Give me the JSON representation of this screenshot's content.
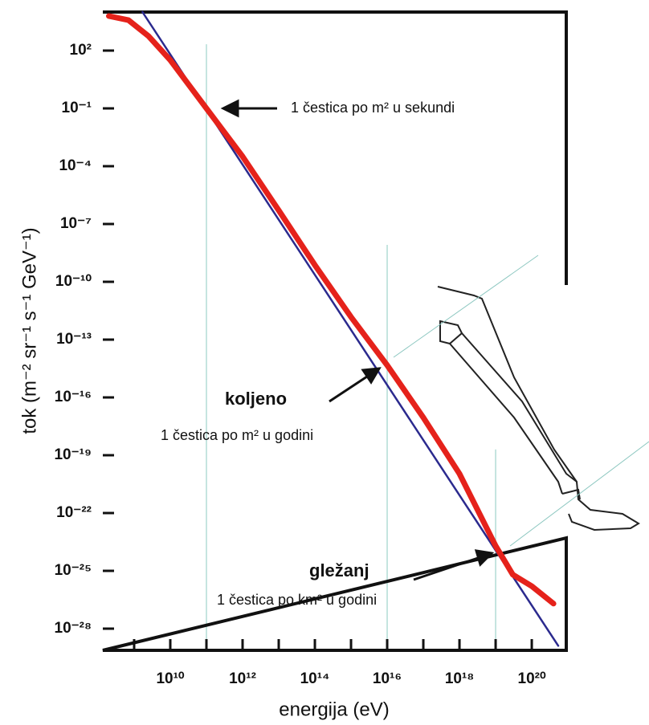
{
  "chart_data": {
    "type": "line",
    "xlabel": "energija (eV)",
    "ylabel": "tok (m⁻² sr⁻¹ s⁻¹ GeV⁻¹)",
    "xlog": true,
    "ylog": true,
    "xlim": [
      136000000.0,
      9e+20
    ],
    "ylim": [
      7.5e-30,
      10000.0
    ],
    "xticks": [
      {
        "value": 10000000000.0,
        "label": "10¹⁰"
      },
      {
        "value": 1000000000000.0,
        "label": "10¹²"
      },
      {
        "value": 100000000000000.0,
        "label": "10¹⁴"
      },
      {
        "value": 1e+16,
        "label": "10¹⁶"
      },
      {
        "value": 1e+18,
        "label": "10¹⁸"
      },
      {
        "value": 1e+20,
        "label": "10²⁰"
      }
    ],
    "xminorticks": [
      1000000000.0,
      100000000000.0,
      10000000000000.0,
      1000000000000000.0,
      1e+17,
      1e+19
    ],
    "yticks": [
      {
        "value": 100,
        "label": "10²"
      },
      {
        "value": 0.1,
        "label": "10⁻¹"
      },
      {
        "value": 0.0001,
        "label": "10⁻⁴"
      },
      {
        "value": 1e-07,
        "label": "10⁻⁷"
      },
      {
        "value": 1e-10,
        "label": "10⁻¹⁰"
      },
      {
        "value": 1e-13,
        "label": "10⁻¹³"
      },
      {
        "value": 1e-16,
        "label": "10⁻¹⁶"
      },
      {
        "value": 1e-19,
        "label": "10⁻¹⁹"
      },
      {
        "value": 1e-22,
        "label": "10⁻²²"
      },
      {
        "value": 1e-25,
        "label": "10⁻²⁵"
      },
      {
        "value": 1e-28,
        "label": "10⁻²⁸"
      }
    ],
    "vlines": [
      {
        "x": 100000000000.0,
        "top": 214
      },
      {
        "x": 1e+16,
        "top": 8.3e-09
      },
      {
        "x": 1e+19,
        "top": 2e-19
      }
    ],
    "series": [
      {
        "color": "#2b2a8e",
        "x": [
          1700000000.0,
          5.4e+20
        ],
        "values": [
          10000.0,
          1.3e-29
        ]
      },
      {
        "color": "#e5221b",
        "x": [
          200000000.0,
          700000000.0,
          2500000000.0,
          10000000000.0,
          100000000000.0,
          1000000000000.0,
          10000000000000.0,
          100000000000000.0,
          1000000000000000.0,
          1e+16,
          1e+17,
          1e+18,
          1e+19,
          3e+19,
          1e+20,
          4e+20
        ],
        "values": [
          6200,
          3800,
          560,
          32,
          0.1,
          0.00032,
          5.1e-07,
          7.4e-10,
          1.5e-12,
          4.7e-15,
          9.1e-18,
          1.1e-20,
          2e-24,
          6.3e-26,
          1.6e-26,
          2e-27
        ]
      }
    ],
    "annotations": {
      "second": "1 čestica po m² u sekundi",
      "knee": "koljeno",
      "knee_rate": "1 čestica po m² u godini",
      "ankle": "gležanj",
      "ankle_rate": "1 čestica po km² u godini"
    }
  }
}
